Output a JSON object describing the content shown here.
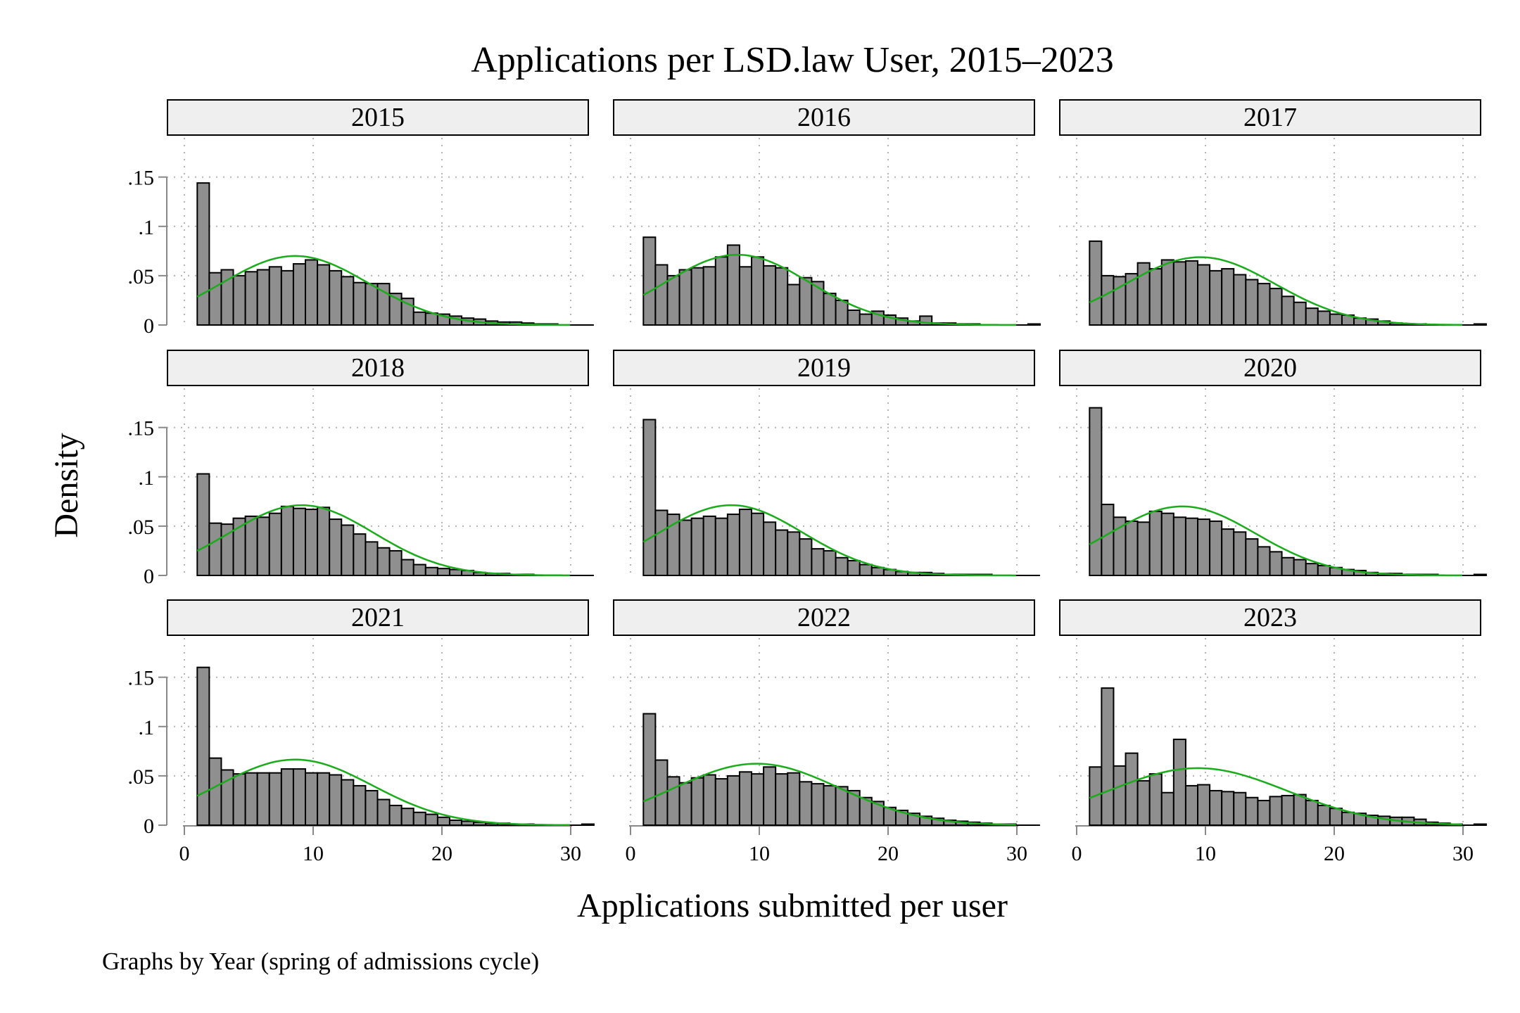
{
  "chart_data": {
    "type": "bar",
    "subtype": "faceted histogram with fitted normal density curve",
    "title": "Applications per LSD.law User, 2015–2023",
    "xlabel": "Applications submitted per user",
    "ylabel": "Density",
    "note": "Graphs by Year (spring of admissions cycle)",
    "xlim": [
      0,
      30
    ],
    "ylim": [
      0,
      0.15
    ],
    "xticks": [
      0,
      10,
      20,
      30
    ],
    "yticks": [
      0,
      0.05,
      0.1,
      0.15
    ],
    "xtick_labels": [
      "0",
      "10",
      "20",
      "30"
    ],
    "ytick_labels": [
      "0",
      ".05",
      ".1",
      ".15"
    ],
    "grid": "dotted vertical and horizontal",
    "layout": "3x3 panels",
    "bin_start": 1,
    "bin_width": 0.9333,
    "colors": {
      "bar_fill": "#8f8f8f",
      "bar_edge": "#000000",
      "curve": "#1aac1a",
      "panel_header": "#efefef",
      "grid": "#b4b4b4",
      "axis": "#888888"
    },
    "panels": [
      {
        "label": "2015",
        "curve": {
          "mean": 8.6,
          "sd": 5.7
        },
        "values": [
          0.144,
          0.053,
          0.056,
          0.05,
          0.054,
          0.056,
          0.059,
          0.055,
          0.062,
          0.066,
          0.061,
          0.055,
          0.049,
          0.043,
          0.042,
          0.042,
          0.032,
          0.027,
          0.013,
          0.012,
          0.011,
          0.009,
          0.007,
          0.006,
          0.004,
          0.003,
          0.003,
          0.002,
          0.001,
          0.001,
          0.0,
          0.0,
          0.0
        ]
      },
      {
        "label": "2016",
        "curve": {
          "mean": 8.3,
          "sd": 5.6
        },
        "values": [
          0.089,
          0.061,
          0.05,
          0.056,
          0.058,
          0.059,
          0.069,
          0.081,
          0.059,
          0.069,
          0.06,
          0.058,
          0.041,
          0.048,
          0.044,
          0.032,
          0.025,
          0.015,
          0.011,
          0.014,
          0.01,
          0.007,
          0.004,
          0.009,
          0.002,
          0.002,
          0.001,
          0.001,
          0.0,
          0.0,
          0.0,
          0.0,
          0.001
        ]
      },
      {
        "label": "2017",
        "curve": {
          "mean": 9.6,
          "sd": 5.8
        },
        "values": [
          0.085,
          0.05,
          0.049,
          0.052,
          0.063,
          0.057,
          0.066,
          0.064,
          0.065,
          0.061,
          0.055,
          0.057,
          0.051,
          0.046,
          0.042,
          0.037,
          0.029,
          0.023,
          0.017,
          0.014,
          0.011,
          0.01,
          0.007,
          0.006,
          0.004,
          0.002,
          0.001,
          0.001,
          0.0,
          0.0,
          0.0,
          0.0,
          0.001
        ]
      },
      {
        "label": "2018",
        "curve": {
          "mean": 9.1,
          "sd": 5.6
        },
        "values": [
          0.103,
          0.053,
          0.052,
          0.058,
          0.06,
          0.059,
          0.063,
          0.07,
          0.068,
          0.067,
          0.069,
          0.057,
          0.051,
          0.042,
          0.034,
          0.028,
          0.025,
          0.016,
          0.011,
          0.008,
          0.007,
          0.006,
          0.005,
          0.003,
          0.002,
          0.002,
          0.001,
          0.001,
          0.0,
          0.0,
          0.0,
          0.0,
          0.0
        ]
      },
      {
        "label": "2019",
        "curve": {
          "mean": 7.8,
          "sd": 5.6
        },
        "values": [
          0.158,
          0.066,
          0.062,
          0.056,
          0.058,
          0.06,
          0.058,
          0.062,
          0.067,
          0.063,
          0.054,
          0.046,
          0.044,
          0.037,
          0.027,
          0.025,
          0.018,
          0.015,
          0.011,
          0.008,
          0.006,
          0.004,
          0.003,
          0.003,
          0.002,
          0.001,
          0.001,
          0.001,
          0.001,
          0.0,
          0.0,
          0.0,
          0.0
        ]
      },
      {
        "label": "2020",
        "curve": {
          "mean": 8.2,
          "sd": 5.7
        },
        "values": [
          0.17,
          0.072,
          0.059,
          0.055,
          0.054,
          0.065,
          0.063,
          0.059,
          0.058,
          0.057,
          0.055,
          0.047,
          0.044,
          0.037,
          0.029,
          0.024,
          0.018,
          0.016,
          0.012,
          0.01,
          0.008,
          0.006,
          0.005,
          0.003,
          0.002,
          0.002,
          0.001,
          0.001,
          0.001,
          0.0,
          0.0,
          0.0,
          0.001
        ]
      },
      {
        "label": "2021",
        "curve": {
          "mean": 8.6,
          "sd": 6.0
        },
        "values": [
          0.16,
          0.068,
          0.056,
          0.052,
          0.053,
          0.053,
          0.053,
          0.057,
          0.057,
          0.053,
          0.053,
          0.051,
          0.046,
          0.04,
          0.035,
          0.026,
          0.02,
          0.017,
          0.013,
          0.011,
          0.008,
          0.005,
          0.004,
          0.003,
          0.002,
          0.002,
          0.001,
          0.001,
          0.0,
          0.0,
          0.0,
          0.0,
          0.001
        ]
      },
      {
        "label": "2022",
        "curve": {
          "mean": 9.8,
          "sd": 6.4
        },
        "values": [
          0.113,
          0.066,
          0.049,
          0.043,
          0.048,
          0.051,
          0.047,
          0.05,
          0.054,
          0.052,
          0.059,
          0.052,
          0.053,
          0.044,
          0.042,
          0.04,
          0.039,
          0.035,
          0.028,
          0.024,
          0.018,
          0.015,
          0.012,
          0.009,
          0.007,
          0.005,
          0.004,
          0.003,
          0.002,
          0.001,
          0.001,
          0.0,
          0.0
        ]
      },
      {
        "label": "2023",
        "curve": {
          "mean": 9.4,
          "sd": 6.9
        },
        "values": [
          0.059,
          0.139,
          0.06,
          0.073,
          0.045,
          0.052,
          0.033,
          0.087,
          0.04,
          0.041,
          0.035,
          0.034,
          0.033,
          0.028,
          0.025,
          0.029,
          0.03,
          0.031,
          0.025,
          0.02,
          0.017,
          0.013,
          0.012,
          0.01,
          0.009,
          0.008,
          0.008,
          0.006,
          0.003,
          0.002,
          0.001,
          0.0,
          0.001
        ]
      }
    ]
  }
}
